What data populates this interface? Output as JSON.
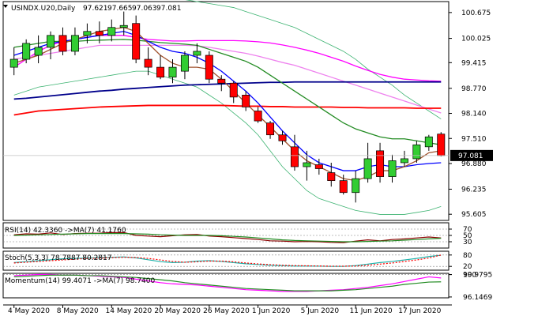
{
  "chart_data": [
    {
      "type": "candlestick",
      "header": {
        "symbol": "USINDX.U20,Daily",
        "open": "97.621",
        "high": "97.665",
        "low": "97.063",
        "close": "97.081"
      },
      "ylim": [
        95.45,
        100.95
      ],
      "y_ticks": [
        "100.675",
        "100.025",
        "99.415",
        "98.770",
        "98.140",
        "97.510",
        "96.880",
        "96.235",
        "95.605"
      ],
      "current_price": "97.081",
      "x_ticks": [
        {
          "index": 0,
          "label": "4 May 2020"
        },
        {
          "index": 4,
          "label": "8 May 2020"
        },
        {
          "index": 8,
          "label": "14 May 2020"
        },
        {
          "index": 12,
          "label": "20 May 2020"
        },
        {
          "index": 16,
          "label": "26 May 2020"
        },
        {
          "index": 20,
          "label": "1 Jun 2020"
        },
        {
          "index": 24,
          "label": "5 Jun 2020"
        },
        {
          "index": 28,
          "label": "11 Jun 2020"
        },
        {
          "index": 32,
          "label": "17 Jun 2020"
        }
      ],
      "candles": [
        {
          "o": 99.3,
          "h": 99.8,
          "l": 99.1,
          "c": 99.5
        },
        {
          "o": 99.5,
          "h": 100.0,
          "l": 99.4,
          "c": 99.9
        },
        {
          "o": 99.6,
          "h": 100.1,
          "l": 99.4,
          "c": 99.8
        },
        {
          "o": 99.8,
          "h": 100.2,
          "l": 99.5,
          "c": 100.1
        },
        {
          "o": 100.1,
          "h": 100.3,
          "l": 99.6,
          "c": 99.7
        },
        {
          "o": 99.7,
          "h": 100.3,
          "l": 99.6,
          "c": 100.1
        },
        {
          "o": 100.1,
          "h": 100.4,
          "l": 99.9,
          "c": 100.2
        },
        {
          "o": 100.2,
          "h": 100.45,
          "l": 99.9,
          "c": 100.1
        },
        {
          "o": 100.1,
          "h": 100.5,
          "l": 99.95,
          "c": 100.3
        },
        {
          "o": 100.3,
          "h": 100.7,
          "l": 100.1,
          "c": 100.35
        },
        {
          "o": 100.4,
          "h": 100.6,
          "l": 99.4,
          "c": 99.5
        },
        {
          "o": 99.5,
          "h": 99.8,
          "l": 99.1,
          "c": 99.3
        },
        {
          "o": 99.3,
          "h": 99.6,
          "l": 99.0,
          "c": 99.05
        },
        {
          "o": 99.05,
          "h": 99.5,
          "l": 98.9,
          "c": 99.3
        },
        {
          "o": 99.2,
          "h": 99.7,
          "l": 99.0,
          "c": 99.6
        },
        {
          "o": 99.6,
          "h": 99.9,
          "l": 99.4,
          "c": 99.7
        },
        {
          "o": 99.6,
          "h": 99.7,
          "l": 98.9,
          "c": 99.0
        },
        {
          "o": 99.0,
          "h": 99.1,
          "l": 98.7,
          "c": 98.9
        },
        {
          "o": 98.9,
          "h": 98.95,
          "l": 98.4,
          "c": 98.55
        },
        {
          "o": 98.6,
          "h": 98.7,
          "l": 98.2,
          "c": 98.3
        },
        {
          "o": 98.2,
          "h": 98.3,
          "l": 97.9,
          "c": 97.95
        },
        {
          "o": 97.9,
          "h": 97.95,
          "l": 97.5,
          "c": 97.6
        },
        {
          "o": 97.6,
          "h": 97.7,
          "l": 97.35,
          "c": 97.45
        },
        {
          "o": 97.3,
          "h": 97.6,
          "l": 96.7,
          "c": 96.8
        },
        {
          "o": 96.8,
          "h": 97.2,
          "l": 96.45,
          "c": 96.9
        },
        {
          "o": 96.85,
          "h": 97.0,
          "l": 96.6,
          "c": 96.75
        },
        {
          "o": 96.65,
          "h": 96.9,
          "l": 96.3,
          "c": 96.45
        },
        {
          "o": 96.45,
          "h": 96.6,
          "l": 96.1,
          "c": 96.15
        },
        {
          "o": 96.15,
          "h": 96.7,
          "l": 95.9,
          "c": 96.5
        },
        {
          "o": 96.5,
          "h": 97.4,
          "l": 96.4,
          "c": 97.0
        },
        {
          "o": 97.2,
          "h": 97.4,
          "l": 96.4,
          "c": 96.55
        },
        {
          "o": 96.55,
          "h": 97.1,
          "l": 96.4,
          "c": 96.95
        },
        {
          "o": 96.9,
          "h": 97.2,
          "l": 96.8,
          "c": 97.0
        },
        {
          "o": 97.0,
          "h": 97.45,
          "l": 96.9,
          "c": 97.35
        },
        {
          "o": 97.3,
          "h": 97.6,
          "l": 97.2,
          "c": 97.55
        },
        {
          "o": 97.62,
          "h": 97.67,
          "l": 97.06,
          "c": 97.08
        }
      ],
      "moving_averages": [
        {
          "color": "#ff00ff",
          "values": [
            99.3,
            99.5,
            99.7,
            99.85,
            99.95,
            100.0,
            100.05,
            100.1,
            100.1,
            100.1,
            100.05,
            100.0,
            99.98,
            99.96,
            99.96,
            99.97,
            99.97,
            99.97,
            99.97,
            99.96,
            99.94,
            99.91,
            99.86,
            99.8,
            99.73,
            99.65,
            99.55,
            99.45,
            99.33,
            99.22,
            99.12,
            99.05,
            99.0,
            98.98,
            98.96,
            98.95
          ]
        },
        {
          "color": "#ee82ee",
          "values": [
            99.5,
            99.55,
            99.6,
            99.65,
            99.7,
            99.75,
            99.8,
            99.85,
            99.85,
            99.85,
            99.85,
            99.85,
            99.85,
            99.85,
            99.85,
            99.84,
            99.8,
            99.75,
            99.7,
            99.65,
            99.58,
            99.5,
            99.42,
            99.35,
            99.25,
            99.15,
            99.05,
            98.95,
            98.85,
            98.75,
            98.65,
            98.55,
            98.45,
            98.35,
            98.25,
            98.15
          ]
        },
        {
          "color": "#ff0000",
          "values": [
            98.1,
            98.15,
            98.2,
            98.22,
            98.24,
            98.26,
            98.28,
            98.3,
            98.31,
            98.32,
            98.33,
            98.34,
            98.34,
            98.34,
            98.34,
            98.34,
            98.34,
            98.34,
            98.33,
            98.32,
            98.32,
            98.31,
            98.31,
            98.3,
            98.3,
            98.3,
            98.3,
            98.29,
            98.29,
            98.28,
            98.28,
            98.28,
            98.28,
            98.27,
            98.27,
            98.27
          ]
        },
        {
          "color": "#00008b",
          "values": [
            98.5,
            98.52,
            98.55,
            98.58,
            98.61,
            98.64,
            98.67,
            98.7,
            98.72,
            98.75,
            98.77,
            98.79,
            98.81,
            98.83,
            98.85,
            98.86,
            98.87,
            98.88,
            98.89,
            98.9,
            98.91,
            98.92,
            98.92,
            98.93,
            98.93,
            98.93,
            98.93,
            98.93,
            98.93,
            98.93,
            98.93,
            98.93,
            98.93,
            98.93,
            98.93,
            98.93
          ]
        },
        {
          "color": "#228b22",
          "values": [
            99.8,
            99.85,
            99.9,
            99.95,
            99.95,
            99.95,
            99.97,
            99.98,
            99.99,
            100.0,
            99.98,
            99.95,
            99.92,
            99.9,
            99.88,
            99.85,
            99.75,
            99.65,
            99.55,
            99.45,
            99.3,
            99.1,
            98.9,
            98.7,
            98.5,
            98.3,
            98.1,
            97.9,
            97.75,
            97.65,
            97.55,
            97.5,
            97.5,
            97.45,
            97.4,
            97.35
          ]
        },
        {
          "color": "#0000ff",
          "values": [
            99.6,
            99.7,
            99.8,
            99.9,
            99.95,
            100.0,
            100.05,
            100.1,
            100.15,
            100.2,
            100.1,
            99.95,
            99.8,
            99.7,
            99.65,
            99.55,
            99.4,
            99.2,
            98.95,
            98.7,
            98.4,
            98.05,
            97.7,
            97.4,
            97.1,
            96.9,
            96.8,
            96.7,
            96.7,
            96.8,
            96.85,
            96.8,
            96.8,
            96.85,
            96.88,
            96.9
          ]
        },
        {
          "color": "#a0522d",
          "values": [
            99.4,
            99.5,
            99.6,
            99.75,
            99.9,
            100.0,
            100.1,
            100.2,
            100.25,
            100.3,
            100.2,
            99.9,
            99.6,
            99.4,
            99.3,
            99.3,
            99.25,
            99.0,
            98.7,
            98.4,
            98.1,
            97.8,
            97.5,
            97.2,
            96.95,
            96.8,
            96.65,
            96.5,
            96.45,
            96.55,
            96.7,
            96.7,
            96.8,
            96.95,
            97.15,
            97.2
          ]
        }
      ],
      "bollinger_bands": {
        "color": "#3cb371",
        "upper": [
          101.2,
          101.2,
          101.2,
          101.2,
          101.25,
          101.25,
          101.25,
          101.25,
          101.25,
          101.25,
          101.2,
          101.15,
          101.1,
          101.05,
          101.0,
          100.95,
          100.9,
          100.85,
          100.8,
          100.7,
          100.6,
          100.5,
          100.4,
          100.3,
          100.15,
          100.0,
          99.85,
          99.7,
          99.5,
          99.25,
          99.05,
          98.85,
          98.6,
          98.4,
          98.2,
          98.0
        ],
        "lower": [
          98.6,
          98.7,
          98.8,
          98.85,
          98.9,
          98.95,
          99.0,
          99.05,
          99.1,
          99.15,
          99.2,
          99.2,
          99.1,
          99.0,
          98.9,
          98.8,
          98.6,
          98.4,
          98.15,
          97.9,
          97.6,
          97.2,
          96.8,
          96.5,
          96.2,
          96.0,
          95.9,
          95.8,
          95.7,
          95.65,
          95.6,
          95.6,
          95.6,
          95.65,
          95.7,
          95.8
        ]
      }
    },
    {
      "type": "line",
      "label": "RSI(14) 42.3360 ->MA(7) 41.1760",
      "ylim": [
        10,
        90
      ],
      "y_ticks": [
        "70",
        "50",
        "30"
      ],
      "series": [
        {
          "color": "#8b0000",
          "values": [
            52,
            55,
            54,
            58,
            53,
            56,
            57,
            57,
            59,
            59,
            50,
            48,
            46,
            49,
            52,
            53,
            48,
            46,
            43,
            40,
            37,
            33,
            32,
            30,
            31,
            30,
            28,
            27,
            32,
            36,
            33,
            37,
            39,
            42,
            45,
            42
          ]
        },
        {
          "color": "#228b22",
          "values": [
            50,
            51,
            52,
            53,
            54,
            55,
            56,
            56,
            56,
            56,
            55,
            54,
            52,
            51,
            50,
            50,
            50,
            49,
            47,
            45,
            42,
            39,
            36,
            34,
            33,
            32,
            31,
            30,
            30,
            31,
            32,
            33,
            35,
            37,
            39,
            41
          ]
        }
      ]
    },
    {
      "type": "line",
      "label": "Stoch(5,3,3) 78.7887 80.2817",
      "ylim": [
        0,
        100
      ],
      "y_ticks": [
        "80",
        "20"
      ],
      "series": [
        {
          "color": "#20b2aa",
          "values": [
            40,
            45,
            50,
            55,
            60,
            62,
            64,
            66,
            68,
            70,
            65,
            55,
            45,
            40,
            42,
            48,
            50,
            46,
            40,
            34,
            30,
            26,
            24,
            22,
            22,
            21,
            20,
            20,
            24,
            32,
            40,
            46,
            54,
            62,
            72,
            79
          ]
        },
        {
          "color": "#ff0000",
          "values": [
            38,
            42,
            46,
            50,
            54,
            58,
            62,
            64,
            66,
            68,
            67,
            62,
            54,
            46,
            42,
            44,
            48,
            48,
            44,
            38,
            33,
            29,
            26,
            24,
            23,
            22,
            21,
            21,
            22,
            26,
            32,
            38,
            46,
            54,
            64,
            80
          ]
        }
      ]
    },
    {
      "type": "line",
      "label": "Momentum(14) 99.4071 ->MA(7) 98.7400",
      "ylim": [
        96.0,
        100.2
      ],
      "y_ticks": [
        "100",
        "99.9795",
        "96.1469"
      ],
      "series": [
        {
          "color": "#ff00ff",
          "values": [
            99.8,
            99.9,
            100.0,
            100.0,
            99.9,
            99.9,
            99.8,
            99.7,
            99.6,
            99.5,
            99.2,
            98.9,
            98.6,
            98.4,
            98.3,
            98.2,
            98.0,
            97.8,
            97.6,
            97.4,
            97.3,
            97.2,
            97.1,
            97.1,
            97.1,
            97.2,
            97.3,
            97.4,
            97.6,
            97.8,
            98.1,
            98.4,
            98.8,
            99.2,
            99.6,
            99.4
          ]
        },
        {
          "color": "#228b22",
          "values": [
            99.6,
            99.7,
            99.8,
            99.9,
            99.9,
            99.9,
            99.8,
            99.8,
            99.7,
            99.6,
            99.5,
            99.3,
            99.1,
            98.9,
            98.6,
            98.4,
            98.2,
            98.0,
            97.8,
            97.6,
            97.5,
            97.4,
            97.3,
            97.2,
            97.2,
            97.2,
            97.2,
            97.3,
            97.4,
            97.6,
            97.8,
            98.0,
            98.3,
            98.5,
            98.7,
            98.74
          ]
        }
      ]
    }
  ]
}
